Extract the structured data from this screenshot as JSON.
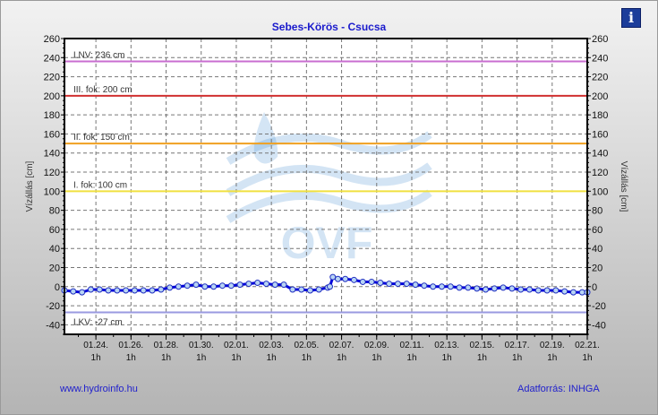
{
  "title": "Sebes-Körös - Csucsa",
  "info_icon": "info-icon",
  "footer_left": "www.hydroinfo.hu",
  "footer_right": "Adatforrás: INHGA",
  "watermark": "OVF",
  "chart_data": {
    "type": "line",
    "title": "Sebes-Körös - Csucsa",
    "ylabel": "Vízállás [cm]",
    "ylabel_right": "Vízállás [cm]",
    "ylim": [
      -50,
      260
    ],
    "yticks": [
      -40,
      -20,
      0,
      20,
      40,
      60,
      80,
      100,
      120,
      140,
      160,
      180,
      200,
      220,
      240,
      260
    ],
    "xlim": [
      "01.22 06",
      "02.21 01"
    ],
    "xticks": [
      {
        "d": "01.24.",
        "h": "1h"
      },
      {
        "d": "01.26.",
        "h": "1h"
      },
      {
        "d": "01.28.",
        "h": "1h"
      },
      {
        "d": "01.30.",
        "h": "1h"
      },
      {
        "d": "02.01.",
        "h": "1h"
      },
      {
        "d": "02.03.",
        "h": "1h"
      },
      {
        "d": "02.05.",
        "h": "1h"
      },
      {
        "d": "02.07.",
        "h": "1h"
      },
      {
        "d": "02.09.",
        "h": "1h"
      },
      {
        "d": "02.11.",
        "h": "1h"
      },
      {
        "d": "02.13.",
        "h": "1h"
      },
      {
        "d": "02.15.",
        "h": "1h"
      },
      {
        "d": "02.17.",
        "h": "1h"
      },
      {
        "d": "02.19.",
        "h": "1h"
      },
      {
        "d": "02.21.",
        "h": "1h"
      }
    ],
    "grid": true,
    "thresholds": [
      {
        "label": "LNV: 236 cm",
        "value": 236,
        "color": "#c86ed0"
      },
      {
        "label": "III. fok: 200 cm",
        "value": 200,
        "color": "#d03030"
      },
      {
        "label": "II. fok: 150 cm",
        "value": 150,
        "color": "#f0a020"
      },
      {
        "label": "I. fok: 100 cm",
        "value": 100,
        "color": "#f0e040"
      },
      {
        "label": "LKV: -27 cm",
        "value": -27,
        "color": "#9a9ae0"
      }
    ],
    "series": [
      {
        "color": "#0000dd",
        "points": [
          [
            "01.22 06",
            -4
          ],
          [
            "01.22 18",
            -5
          ],
          [
            "01.23 06",
            -6
          ],
          [
            "01.23 18",
            -3
          ],
          [
            "01.24 06",
            -3
          ],
          [
            "01.24 18",
            -4
          ],
          [
            "01.25 06",
            -4
          ],
          [
            "01.25 18",
            -4
          ],
          [
            "01.26 06",
            -4
          ],
          [
            "01.26 18",
            -4
          ],
          [
            "01.27 06",
            -4
          ],
          [
            "01.27 18",
            -3
          ],
          [
            "01.28 06",
            -1
          ],
          [
            "01.28 18",
            0
          ],
          [
            "01.29 06",
            1
          ],
          [
            "01.29 18",
            2
          ],
          [
            "01.30 06",
            0
          ],
          [
            "01.30 18",
            0
          ],
          [
            "01.31 06",
            1
          ],
          [
            "01.31 18",
            1
          ],
          [
            "02.01 06",
            2
          ],
          [
            "02.01 18",
            3
          ],
          [
            "02.02 06",
            4
          ],
          [
            "02.02 18",
            3
          ],
          [
            "02.03 06",
            2
          ],
          [
            "02.03 18",
            2
          ],
          [
            "02.04 06",
            -3
          ],
          [
            "02.04 18",
            -3
          ],
          [
            "02.05 06",
            -4
          ],
          [
            "02.05 18",
            -3
          ],
          [
            "02.06 06",
            -1
          ],
          [
            "02.06 09",
            0
          ],
          [
            "02.06 13",
            10
          ],
          [
            "02.06 20",
            8
          ],
          [
            "02.07 06",
            8
          ],
          [
            "02.07 18",
            7
          ],
          [
            "02.08 06",
            5
          ],
          [
            "02.08 18",
            5
          ],
          [
            "02.09 06",
            4
          ],
          [
            "02.09 18",
            3
          ],
          [
            "02.10 06",
            3
          ],
          [
            "02.10 18",
            3
          ],
          [
            "02.11 06",
            2
          ],
          [
            "02.11 18",
            1
          ],
          [
            "02.12 06",
            0
          ],
          [
            "02.12 18",
            0
          ],
          [
            "02.13 06",
            0
          ],
          [
            "02.13 18",
            -1
          ],
          [
            "02.14 06",
            -1
          ],
          [
            "02.14 18",
            -2
          ],
          [
            "02.15 06",
            -3
          ],
          [
            "02.15 18",
            -2
          ],
          [
            "02.16 06",
            -1
          ],
          [
            "02.16 18",
            -2
          ],
          [
            "02.17 06",
            -3
          ],
          [
            "02.17 18",
            -3
          ],
          [
            "02.18 06",
            -4
          ],
          [
            "02.18 18",
            -4
          ],
          [
            "02.19 06",
            -4
          ],
          [
            "02.19 18",
            -5
          ],
          [
            "02.20 06",
            -6
          ],
          [
            "02.20 18",
            -6
          ],
          [
            "02.21 01",
            -6
          ]
        ]
      }
    ]
  }
}
